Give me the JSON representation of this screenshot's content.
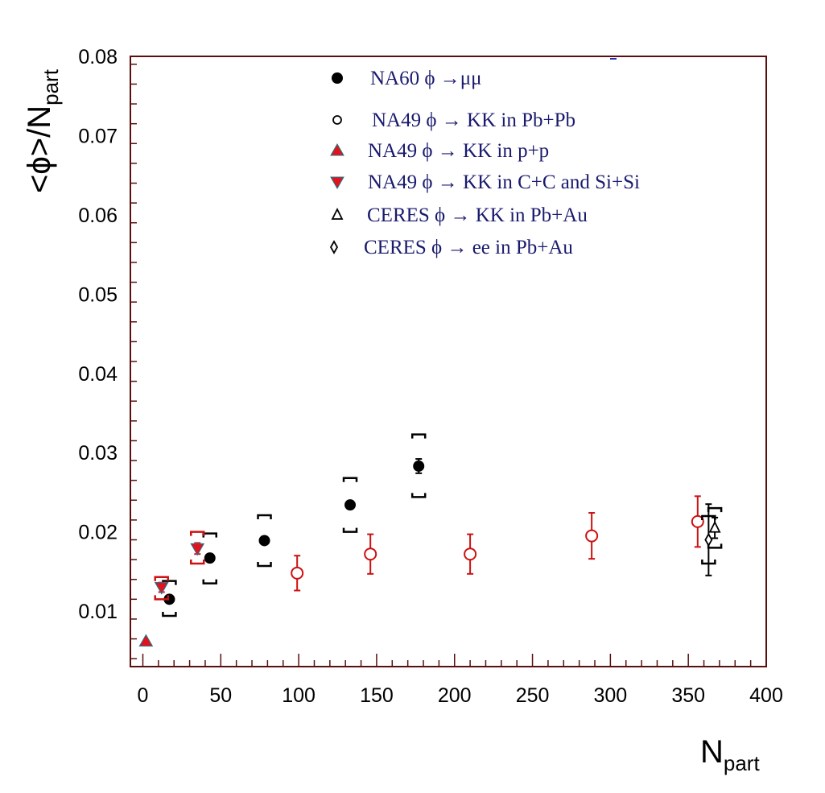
{
  "chart_data": {
    "type": "scatter",
    "title": "",
    "xlabel": {
      "main": "N",
      "sub": "part"
    },
    "ylabel": {
      "main": "<ϕ>/N",
      "sub": "part"
    },
    "xlim": [
      -8,
      400
    ],
    "ylim": [
      0.003,
      0.08
    ],
    "x_ticks": [
      0,
      50,
      100,
      150,
      200,
      250,
      300,
      350,
      400
    ],
    "x_tick_labels": [
      "0",
      "50",
      "100",
      "150",
      "200",
      "250",
      "300",
      "350",
      "400"
    ],
    "y_ticks": [
      0.01,
      0.02,
      0.03,
      0.04,
      0.05,
      0.06,
      0.07,
      0.08
    ],
    "y_tick_labels": [
      "0.01",
      "0.02",
      "0.03",
      "0.04",
      "0.05",
      "0.06",
      "0.07",
      "0.08"
    ],
    "legend_position": "top-center",
    "series": [
      {
        "name": "NA60 ϕ →μμ",
        "marker": "filled-circle",
        "color": "#000000",
        "points": [
          {
            "x": 17,
            "y": 0.0115,
            "err": 0.0004,
            "sys_lo": 0.0094,
            "sys_hi": 0.0138
          },
          {
            "x": 43,
            "y": 0.0167,
            "err": 0.0004,
            "sys_lo": 0.0135,
            "sys_hi": 0.0198
          },
          {
            "x": 78,
            "y": 0.0189,
            "err": 0.0004,
            "sys_lo": 0.0157,
            "sys_hi": 0.0221
          },
          {
            "x": 133,
            "y": 0.0234,
            "err": 0.0004,
            "sys_lo": 0.02,
            "sys_hi": 0.0268
          },
          {
            "x": 177,
            "y": 0.0283,
            "err": 0.0009,
            "sys_lo": 0.0244,
            "sys_hi": 0.0323
          }
        ]
      },
      {
        "name": "NA49 ϕ → KK in Pb+Pb",
        "marker": "open-circle",
        "color": "#cc1111",
        "points": [
          {
            "x": 99,
            "y": 0.0148,
            "err": 0.0022
          },
          {
            "x": 146,
            "y": 0.0172,
            "err": 0.0025
          },
          {
            "x": 210,
            "y": 0.0172,
            "err": 0.0025
          },
          {
            "x": 288,
            "y": 0.0195,
            "err": 0.0029
          },
          {
            "x": 356,
            "y": 0.0213,
            "err": 0.0032
          }
        ]
      },
      {
        "name": "NA49 ϕ → KK in p+p",
        "marker": "filled-triangle-up",
        "color": "#e0141e",
        "points": [
          {
            "x": 2,
            "y": 0.0062,
            "err": 0.0
          }
        ]
      },
      {
        "name": "NA49 ϕ → KK in C+C and Si+Si",
        "marker": "filled-triangle-down",
        "color": "#e0141e",
        "points": [
          {
            "x": 12,
            "y": 0.013,
            "err": 0.0006,
            "sys_lo": 0.0115,
            "sys_hi": 0.0143
          },
          {
            "x": 35,
            "y": 0.0179,
            "err": 0.0007,
            "sys_lo": 0.016,
            "sys_hi": 0.02
          }
        ]
      },
      {
        "name": "CERES ϕ → KK in Pb+Au",
        "marker": "open-triangle-up",
        "color": "#000000",
        "points": [
          {
            "x": 367,
            "y": 0.0205,
            "err": 0.0013,
            "sys_lo": 0.018,
            "sys_hi": 0.023
          }
        ]
      },
      {
        "name": "CERES ϕ → ee in Pb+Au",
        "marker": "open-diamond",
        "color": "#000000",
        "points": [
          {
            "x": 363,
            "y": 0.019,
            "err": 0.0045,
            "sys_lo": 0.016,
            "sys_hi": 0.022
          }
        ]
      }
    ]
  }
}
